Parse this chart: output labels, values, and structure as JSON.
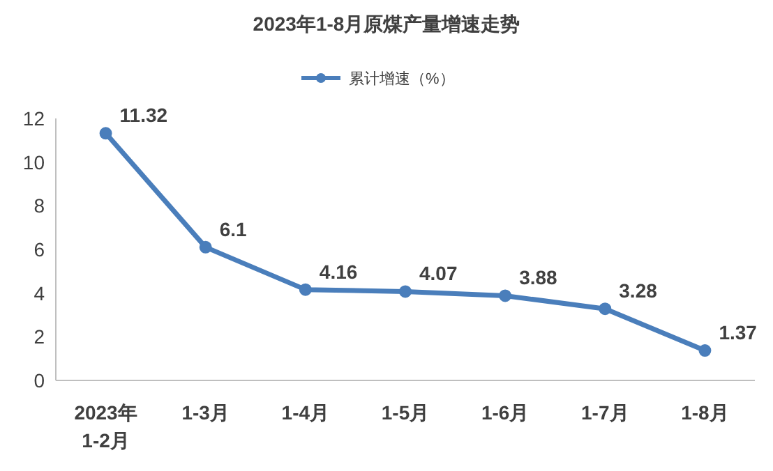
{
  "chart_data": {
    "type": "line",
    "title": "2023年1-8月原煤产量增速走势",
    "categories": [
      "2023年\n1-2月",
      "1-3月",
      "1-4月",
      "1-5月",
      "1-6月",
      "1-7月",
      "1-8月"
    ],
    "series": [
      {
        "name": "累计增速（%）",
        "color": "#4a7ebb",
        "values": [
          11.32,
          6.1,
          4.16,
          4.07,
          3.88,
          3.28,
          1.37
        ]
      }
    ],
    "ylim": [
      0,
      12
    ],
    "yticks": [
      0,
      2,
      4,
      6,
      8,
      10,
      12
    ],
    "grid": false,
    "legend": "top",
    "marker": "circle",
    "line_style": "solid",
    "data_labels": true
  }
}
